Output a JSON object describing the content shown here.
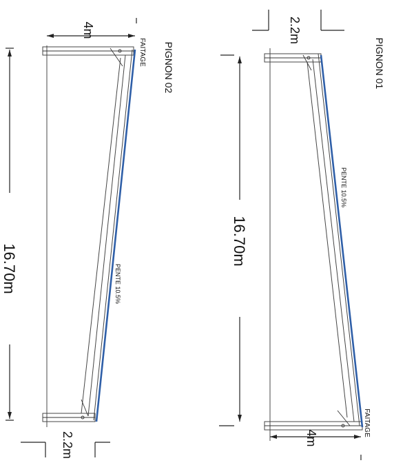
{
  "pignon_01": {
    "title": "PIGNON 01",
    "length": "16.70m",
    "top_width": "2.2m",
    "bottom_width": "4m",
    "ridge": "FAITAGE",
    "slope": "PENTE 10.5%"
  },
  "pignon_02": {
    "title": "PIGNON 02",
    "length": "16.70m",
    "top_width": "4m",
    "bottom_width": "2.2m",
    "ridge": "FAITAGE",
    "slope": "PENTE 10.5%"
  },
  "colors": {
    "rafter_accent": "#2f5fa8",
    "line": "#333333"
  }
}
